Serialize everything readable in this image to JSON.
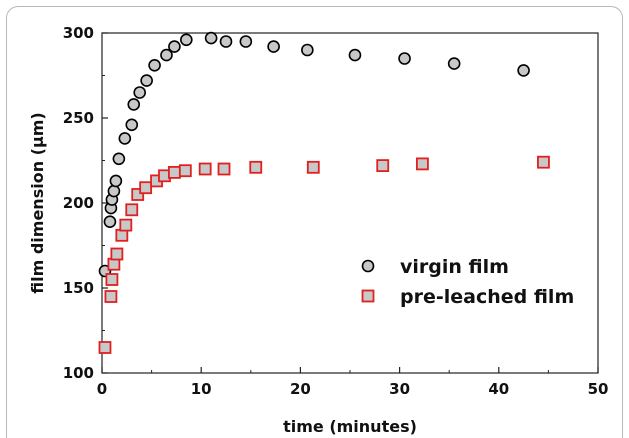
{
  "chart_data": {
    "type": "scatter",
    "xlabel": "time (minutes)",
    "ylabel": "film dimension (µm)",
    "xlim": [
      0,
      50
    ],
    "ylim": [
      100,
      300
    ],
    "x_ticks": [
      0,
      10,
      20,
      30,
      40,
      50
    ],
    "y_ticks": [
      100,
      150,
      200,
      250,
      300
    ],
    "grid": false,
    "legend_position": "center-right",
    "series": [
      {
        "name": "virgin film",
        "marker": "circle",
        "fill": "#c8c8c8",
        "stroke": "#000000",
        "points": [
          [
            0.3,
            160
          ],
          [
            0.8,
            189
          ],
          [
            0.9,
            197
          ],
          [
            1.0,
            202
          ],
          [
            1.2,
            207
          ],
          [
            1.4,
            213
          ],
          [
            1.7,
            226
          ],
          [
            2.3,
            238
          ],
          [
            3.0,
            246
          ],
          [
            3.2,
            258
          ],
          [
            3.8,
            265
          ],
          [
            4.5,
            272
          ],
          [
            5.3,
            281
          ],
          [
            6.5,
            287
          ],
          [
            7.3,
            292
          ],
          [
            8.5,
            296
          ],
          [
            11.0,
            297
          ],
          [
            12.5,
            295
          ],
          [
            14.5,
            295
          ],
          [
            17.3,
            292
          ],
          [
            20.7,
            290
          ],
          [
            25.5,
            287
          ],
          [
            30.5,
            285
          ],
          [
            35.5,
            282
          ],
          [
            42.5,
            278
          ]
        ]
      },
      {
        "name": "pre-leached film",
        "marker": "square",
        "fill": "#c8c8c8",
        "stroke": "#e02020",
        "points": [
          [
            0.3,
            115
          ],
          [
            0.9,
            145
          ],
          [
            1.0,
            155
          ],
          [
            1.2,
            164
          ],
          [
            1.5,
            170
          ],
          [
            2.0,
            181
          ],
          [
            2.4,
            187
          ],
          [
            3.0,
            196
          ],
          [
            3.6,
            205
          ],
          [
            4.4,
            209
          ],
          [
            5.5,
            213
          ],
          [
            6.3,
            216
          ],
          [
            7.3,
            218
          ],
          [
            8.4,
            219
          ],
          [
            10.4,
            220
          ],
          [
            12.3,
            220
          ],
          [
            15.5,
            221
          ],
          [
            21.3,
            221
          ],
          [
            28.3,
            222
          ],
          [
            32.3,
            223
          ],
          [
            44.5,
            224
          ]
        ]
      }
    ]
  }
}
